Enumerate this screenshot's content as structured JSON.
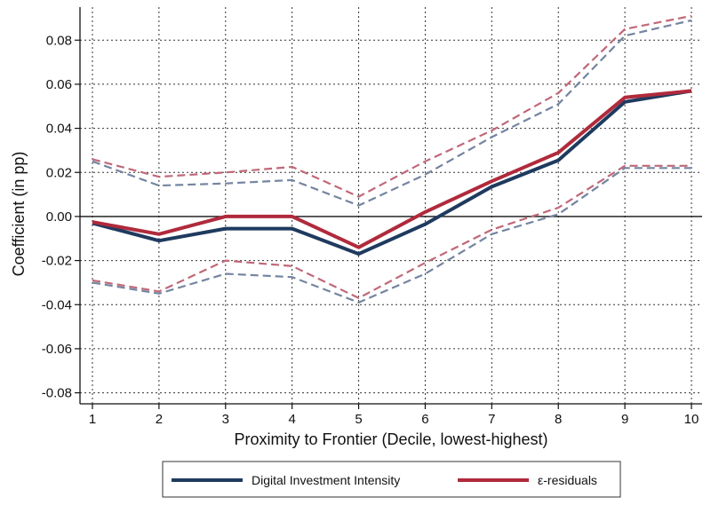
{
  "chart_data": {
    "type": "line",
    "xlabel": "Proximity to Frontier (Decile, lowest-highest)",
    "ylabel": "Coefficient (in pp)",
    "x": [
      1,
      2,
      3,
      4,
      5,
      6,
      7,
      8,
      9,
      10
    ],
    "x_ticks": [
      "1",
      "2",
      "3",
      "4",
      "5",
      "6",
      "7",
      "8",
      "9",
      "10"
    ],
    "y_ticks": [
      "-0.08",
      "-0.06",
      "-0.04",
      "-0.02",
      "0.00",
      "0.02",
      "0.04",
      "0.06",
      "0.08"
    ],
    "y_tick_values": [
      -0.08,
      -0.06,
      -0.04,
      -0.02,
      0.0,
      0.02,
      0.04,
      0.06,
      0.08
    ],
    "xlim": [
      1,
      10
    ],
    "ylim": [
      -0.085,
      0.095
    ],
    "grid": true,
    "legend_position": "bottom",
    "series": [
      {
        "name": "Digital Investment Intensity",
        "color": "#1f3a5f",
        "values": [
          -0.003,
          -0.011,
          -0.0055,
          -0.0055,
          -0.017,
          -0.0035,
          0.0135,
          0.0255,
          0.052,
          0.057
        ],
        "ci_upper": [
          0.025,
          0.014,
          0.015,
          0.0165,
          0.005,
          0.019,
          0.036,
          0.051,
          0.082,
          0.089
        ],
        "ci_lower": [
          -0.03,
          -0.035,
          -0.026,
          -0.0275,
          -0.039,
          -0.026,
          -0.008,
          0.001,
          0.022,
          0.022
        ],
        "ci_color": "#7485a0"
      },
      {
        "name": "ε-residuals",
        "color": "#b02a3c",
        "values": [
          -0.0025,
          -0.008,
          0.0,
          0.0,
          -0.014,
          0.002,
          0.016,
          0.029,
          0.054,
          0.057
        ],
        "ci_upper": [
          0.026,
          0.018,
          0.02,
          0.0225,
          0.009,
          0.025,
          0.039,
          0.056,
          0.085,
          0.091
        ],
        "ci_lower": [
          -0.029,
          -0.034,
          -0.02,
          -0.0225,
          -0.037,
          -0.021,
          -0.006,
          0.004,
          0.023,
          0.023
        ],
        "ci_color": "#c06878"
      }
    ]
  }
}
